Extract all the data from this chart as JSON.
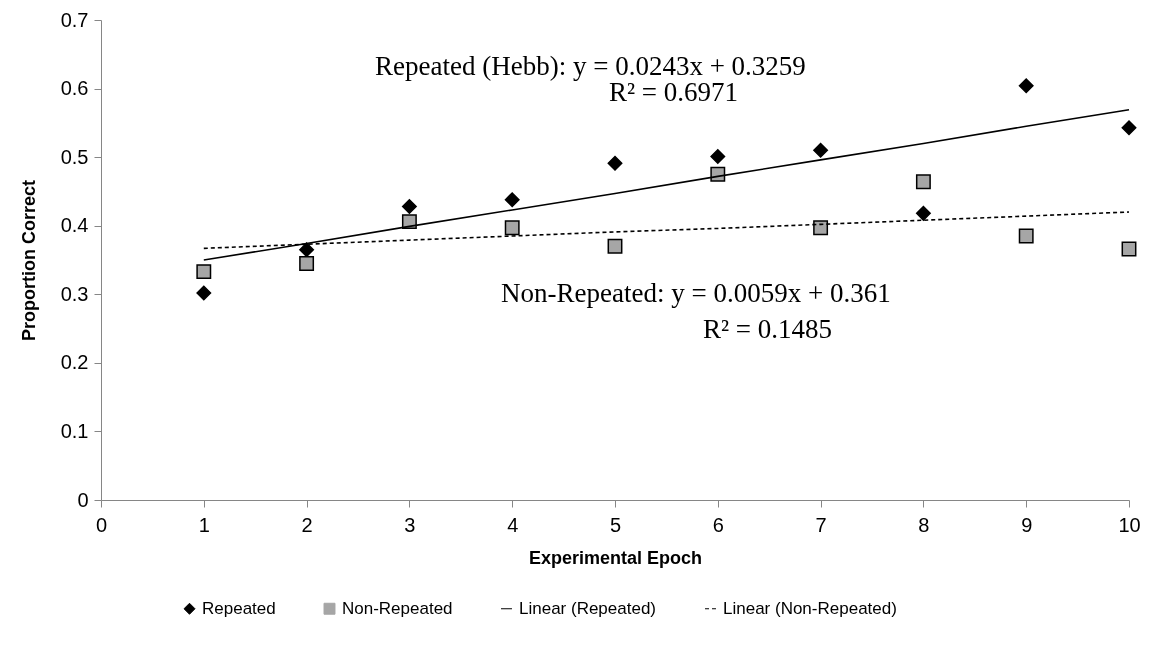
{
  "chart_data": {
    "type": "scatter",
    "xlabel": "Experimental Epoch",
    "ylabel": "Proportion Correct",
    "x": [
      1,
      2,
      3,
      4,
      5,
      6,
      7,
      8,
      9,
      10
    ],
    "series": [
      {
        "name": "Repeated",
        "color": "#000000",
        "marker": "diamond",
        "values": [
          0.302,
          0.365,
          0.428,
          0.438,
          0.491,
          0.501,
          0.51,
          0.418,
          0.604,
          0.543
        ]
      },
      {
        "name": "Non-Repeated",
        "color": "#a6a6a6",
        "marker": "square",
        "values": [
          0.333,
          0.345,
          0.406,
          0.397,
          0.37,
          0.475,
          0.397,
          0.464,
          0.385,
          0.366
        ]
      },
      {
        "name": "Linear (Repeated)",
        "type": "line",
        "color": "#000000",
        "line_style": "solid",
        "values": [
          0.35,
          0.374,
          0.399,
          0.423,
          0.447,
          0.472,
          0.496,
          0.52,
          0.545,
          0.569
        ]
      },
      {
        "name": "Linear (Non-Repeated)",
        "type": "line",
        "color": "#000000",
        "line_style": "dashed",
        "values": [
          0.367,
          0.373,
          0.379,
          0.385,
          0.391,
          0.396,
          0.402,
          0.408,
          0.414,
          0.42
        ]
      }
    ],
    "annotations": [
      "Repeated (Hebb): y = 0.0243x + 0.3259",
      "R² = 0.6971",
      "Non-Repeated: y = 0.0059x + 0.361",
      "R² = 0.1485"
    ],
    "xlim": [
      0,
      10
    ],
    "xticks": [
      0,
      1,
      2,
      3,
      4,
      5,
      6,
      7,
      8,
      9,
      10
    ],
    "ylim": [
      0,
      0.7
    ],
    "yticks": [
      0,
      0.1,
      0.2,
      0.3,
      0.4,
      0.5,
      0.6,
      0.7
    ],
    "grid": false,
    "legend": "bottom"
  }
}
